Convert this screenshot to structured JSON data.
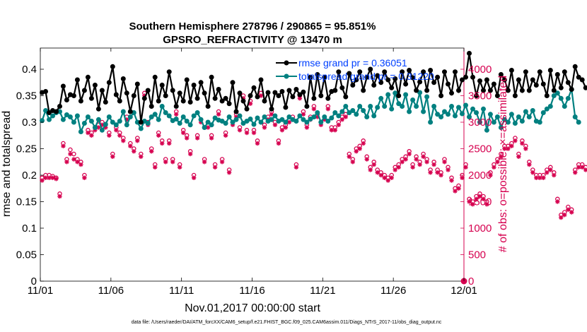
{
  "title": {
    "line1": "Southern Hemisphere 278796 / 290865 = 95.851%",
    "line2": "GPSRO_REFRACTIVITY @ 13470 m"
  },
  "footer": "data file: /Users/raeder/DAI/ATM_forcXX/CAM6_setup/f.e21.FHIST_BGC.f09_025.CAM6assim.011/Diags_NTrS_2017-11/obs_diag_output.nc",
  "colors": {
    "rmse": "#000000",
    "spread": "#008080",
    "obs": "#d6004f",
    "legend_text": "#0040ff"
  },
  "chart_data": {
    "type": "line",
    "title": "Southern Hemisphere 278796 / 290865 = 95.851%\nGPSRO_REFRACTIVITY @ 13470 m",
    "xlabel": "Nov.01,2017 00:00:00 start",
    "ylabel_left": "rmse and totalspread",
    "ylabel_right": "# of obs: o=possible; ×=assimilated",
    "x_tick_labels": [
      "11/01",
      "11/06",
      "11/11",
      "11/16",
      "11/21",
      "11/26",
      "12/01"
    ],
    "x_ticks_day": [
      0,
      5,
      10,
      15,
      20,
      25,
      30
    ],
    "xlim_day": [
      0,
      30
    ],
    "y_left_ticks": [
      0,
      0.05,
      0.1,
      0.15,
      0.2,
      0.25,
      0.3,
      0.35,
      0.4
    ],
    "y_left_tick_labels": [
      "0",
      "0.05",
      "0.1",
      "0.15",
      "0.2",
      "0.25",
      "0.3",
      "0.35",
      "0.4"
    ],
    "ylim_left": [
      0,
      0.44
    ],
    "y_right_ticks": [
      0,
      500,
      1000,
      1500,
      2000,
      2500,
      3000,
      3500,
      4000
    ],
    "ylim_right": [
      0,
      4400
    ],
    "grid": false,
    "legend_position": "top-right",
    "time_step_days": 0.25,
    "series": [
      {
        "name": "rmse grand pr = 0.36051",
        "axis": "left",
        "values": [
          0.356,
          0.358,
          0.318,
          0.322,
          0.32,
          0.33,
          0.368,
          0.342,
          0.352,
          0.35,
          0.38,
          0.34,
          0.36,
          0.385,
          0.345,
          0.37,
          0.325,
          0.36,
          0.338,
          0.375,
          0.405,
          0.352,
          0.34,
          0.382,
          0.355,
          0.32,
          0.35,
          0.372,
          0.3,
          0.345,
          0.36,
          0.33,
          0.385,
          0.34,
          0.37,
          0.35,
          0.395,
          0.36,
          0.33,
          0.355,
          0.34,
          0.38,
          0.338,
          0.37,
          0.345,
          0.375,
          0.355,
          0.33,
          0.385,
          0.345,
          0.362,
          0.34,
          0.345,
          0.335,
          0.375,
          0.32,
          0.355,
          0.34,
          0.325,
          0.35,
          0.365,
          0.348,
          0.38,
          0.34,
          0.356,
          0.325,
          0.356,
          0.35,
          0.358,
          0.328,
          0.36,
          0.348,
          0.362,
          0.352,
          0.357,
          0.33,
          0.385,
          0.345,
          0.39,
          0.35,
          0.385,
          0.345,
          0.358,
          0.36,
          0.395,
          0.365,
          0.348,
          0.392,
          0.37,
          0.38,
          0.395,
          0.36,
          0.385,
          0.4,
          0.37,
          0.388,
          0.375,
          0.395,
          0.38,
          0.365,
          0.382,
          0.35,
          0.395,
          0.372,
          0.398,
          0.384,
          0.36,
          0.376,
          0.395,
          0.36,
          0.398,
          0.375,
          0.385,
          0.35,
          0.395,
          0.372,
          0.355,
          0.395,
          0.36,
          0.38,
          0.385,
          0.43,
          0.385,
          0.35,
          0.378,
          0.36,
          0.38,
          0.36,
          0.372,
          0.35,
          0.39,
          0.38,
          0.36,
          0.398,
          0.35,
          0.38,
          0.36,
          0.395,
          0.36,
          0.38,
          0.37,
          0.395,
          0.372,
          0.35,
          0.398,
          0.36,
          0.39,
          0.365,
          0.395,
          0.375,
          0.362,
          0.405,
          0.385,
          0.38,
          0.365
        ]
      },
      {
        "name": "totalspread grand pr = 0.31220",
        "axis": "left",
        "values": [
          0.303,
          0.322,
          0.305,
          0.312,
          0.318,
          0.32,
          0.305,
          0.314,
          0.31,
          0.3,
          0.312,
          0.282,
          0.298,
          0.31,
          0.302,
          0.29,
          0.305,
          0.285,
          0.296,
          0.31,
          0.3,
          0.295,
          0.302,
          0.32,
          0.295,
          0.31,
          0.318,
          0.3,
          0.288,
          0.302,
          0.298,
          0.31,
          0.315,
          0.305,
          0.33,
          0.318,
          0.312,
          0.303,
          0.306,
          0.298,
          0.31,
          0.302,
          0.295,
          0.312,
          0.318,
          0.305,
          0.29,
          0.3,
          0.295,
          0.308,
          0.304,
          0.302,
          0.298,
          0.31,
          0.3,
          0.305,
          0.312,
          0.298,
          0.302,
          0.306,
          0.296,
          0.308,
          0.3,
          0.31,
          0.302,
          0.305,
          0.312,
          0.302,
          0.305,
          0.3,
          0.31,
          0.305,
          0.302,
          0.312,
          0.305,
          0.3,
          0.306,
          0.31,
          0.318,
          0.3,
          0.31,
          0.302,
          0.308,
          0.318,
          0.312,
          0.32,
          0.33,
          0.318,
          0.322,
          0.315,
          0.33,
          0.322,
          0.31,
          0.33,
          0.312,
          0.328,
          0.345,
          0.33,
          0.352,
          0.325,
          0.355,
          0.335,
          0.33,
          0.352,
          0.32,
          0.342,
          0.33,
          0.356,
          0.32,
          0.348,
          0.3,
          0.33,
          0.315,
          0.31,
          0.32,
          0.315,
          0.33,
          0.312,
          0.328,
          0.316,
          0.332,
          0.31,
          0.325,
          0.318,
          0.3,
          0.325,
          0.285,
          0.315,
          0.3,
          0.31,
          0.29,
          0.305,
          0.3,
          0.315,
          0.298,
          0.31,
          0.302,
          0.32,
          0.31,
          0.322,
          0.302,
          0.3,
          0.318,
          0.325,
          0.33,
          0.35,
          0.355,
          0.345,
          0.33,
          0.345,
          0.362,
          0.31,
          0.3
        ]
      },
      {
        "name": "possible",
        "axis": "right",
        "marker": "circle",
        "values": [
          1950,
          2000,
          2000,
          1980,
          1950,
          1650,
          2600,
          2300,
          2480,
          2400,
          2300,
          2250,
          2000,
          2850,
          2800,
          2900,
          2950,
          3000,
          2950,
          2800,
          2400,
          2900,
          2800,
          2700,
          3100,
          2600,
          2500,
          2700,
          2400,
          3550,
          3000,
          2500,
          2200,
          2800,
          2650,
          2300,
          2650,
          2300,
          3200,
          2200,
          2850,
          2750,
          2450,
          2000,
          2750,
          3050,
          2300,
          2950,
          2750,
          2200,
          3200,
          2300,
          2800,
          2100,
          3000,
          3150,
          2900,
          3500,
          2850,
          3400,
          2850,
          2650,
          3550,
          2950,
          3100,
          3200,
          3000,
          2650,
          2900,
          2950,
          3050,
          3100,
          2200,
          3500,
          3200,
          2950,
          3100,
          3300,
          3150,
          3000,
          3100,
          3300,
          2900,
          2900,
          3000,
          3100,
          3150,
          2400,
          2300,
          2500,
          2550,
          2650,
          2350,
          2150,
          2250,
          2100,
          2050,
          2000,
          1950,
          2000,
          2150,
          2200,
          2300,
          2350,
          2450,
          2200,
          2350,
          2250,
          2400,
          2300,
          2100,
          2250,
          2100,
          2050,
          2300,
          2150,
          1950,
          1750,
          1800,
          2000,
          2200,
          1550,
          1500,
          1600,
          1650,
          1600,
          1500,
          2050,
          2200,
          2300,
          2400,
          2550,
          2550,
          2600,
          2700,
          2400,
          2650,
          2550,
          2250,
          2100,
          2000,
          2000,
          2000,
          2100,
          2150,
          2050,
          1550,
          1250,
          1300,
          1400,
          1350,
          2100,
          2200,
          2200,
          2150
        ]
      },
      {
        "name": "assimilated",
        "axis": "right",
        "marker": "asterisk",
        "values": [
          1900,
          1950,
          1950,
          1950,
          1930,
          1600,
          2550,
          2250,
          2400,
          2300,
          2250,
          2200,
          1950,
          2800,
          2750,
          2850,
          2900,
          2950,
          2900,
          2750,
          2350,
          2850,
          2750,
          2650,
          3050,
          2550,
          2450,
          2650,
          2350,
          3500,
          2950,
          2450,
          2150,
          2750,
          2600,
          2250,
          2600,
          2250,
          3150,
          2150,
          2800,
          2700,
          2400,
          1950,
          2700,
          3000,
          2250,
          2900,
          2700,
          2150,
          3150,
          2250,
          2750,
          2050,
          2950,
          3100,
          2850,
          3450,
          2800,
          3350,
          2800,
          2600,
          3500,
          2900,
          3050,
          3150,
          2950,
          2600,
          2850,
          2900,
          3000,
          3050,
          2150,
          3450,
          3150,
          2900,
          3050,
          3250,
          3100,
          2950,
          3050,
          3250,
          2850,
          2850,
          2950,
          3050,
          3100,
          2350,
          2250,
          2450,
          2500,
          2600,
          2300,
          2100,
          2200,
          2050,
          2000,
          1950,
          1900,
          1950,
          2100,
          2150,
          2250,
          2300,
          2400,
          2150,
          2300,
          2200,
          2350,
          2250,
          2050,
          2200,
          2050,
          2000,
          2250,
          2100,
          1900,
          1700,
          1750,
          1950,
          2150,
          1500,
          1450,
          1550,
          1600,
          1550,
          1450,
          2000,
          2150,
          2250,
          2350,
          2500,
          2500,
          2550,
          2650,
          2350,
          2600,
          2500,
          2200,
          2050,
          1950,
          1950,
          1950,
          2050,
          2100,
          2000,
          1500,
          1200,
          1250,
          1350,
          1300,
          2050,
          2150,
          2150,
          2100
        ]
      }
    ],
    "right_axis_extra_marker": {
      "x_day": 30,
      "value": 0
    }
  }
}
